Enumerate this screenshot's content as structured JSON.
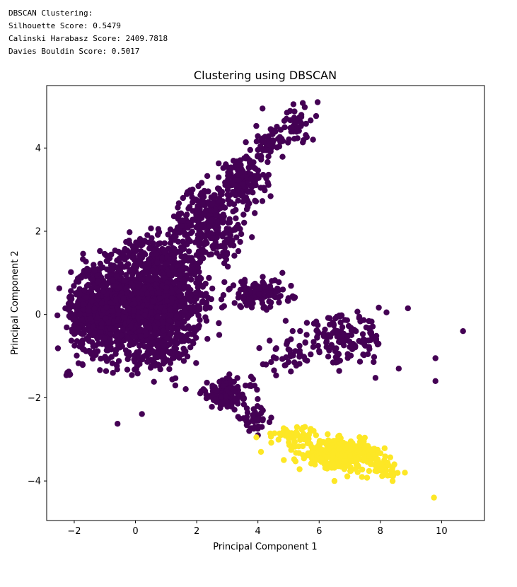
{
  "console": {
    "lines": [
      "DBSCAN Clustering:",
      "Silhouette Score: 0.5479",
      "Calinski Harabasz Score: 2409.7818",
      "Davies Bouldin Score: 0.5017"
    ]
  },
  "chart_data": {
    "type": "scatter",
    "title": "Clustering using DBSCAN",
    "xlabel": "Principal Component 1",
    "ylabel": "Principal Component 2",
    "xlim": [
      -2.9,
      11.4
    ],
    "ylim": [
      -4.95,
      5.5
    ],
    "xticks": [
      -2,
      0,
      2,
      4,
      6,
      8,
      10
    ],
    "yticks": [
      -4,
      -2,
      0,
      2,
      4
    ],
    "xtick_labels": [
      "−2",
      "0",
      "2",
      "4",
      "6",
      "8",
      "10"
    ],
    "ytick_labels": [
      "−4",
      "−2",
      "0",
      "2",
      "4"
    ],
    "grid": false,
    "legend": "none",
    "series": [
      {
        "color": "#440154",
        "regions": [
          {
            "cx": 0.6,
            "cy": 0.3,
            "rx": 1.7,
            "ry": 1.55,
            "n": 1400
          },
          {
            "cx": -1.2,
            "cy": 0.1,
            "rx": 1.0,
            "ry": 1.1,
            "n": 600
          },
          {
            "cx": 2.4,
            "cy": 2.2,
            "rx": 1.2,
            "ry": 0.9,
            "n": 300
          },
          {
            "cx": 3.5,
            "cy": 3.2,
            "rx": 0.8,
            "ry": 0.6,
            "n": 160
          },
          {
            "cx": 4.3,
            "cy": 4.1,
            "rx": 0.5,
            "ry": 0.4,
            "n": 60
          },
          {
            "cx": 5.3,
            "cy": 4.6,
            "rx": 0.6,
            "ry": 0.5,
            "n": 40
          },
          {
            "cx": 4.0,
            "cy": 0.5,
            "rx": 1.2,
            "ry": 0.35,
            "n": 120
          },
          {
            "cx": 3.0,
            "cy": -1.9,
            "rx": 0.9,
            "ry": 0.4,
            "n": 120
          },
          {
            "cx": 3.9,
            "cy": -2.5,
            "rx": 0.5,
            "ry": 0.25,
            "n": 40
          },
          {
            "cx": 6.8,
            "cy": -0.6,
            "rx": 1.4,
            "ry": 0.6,
            "n": 140
          },
          {
            "cx": 5.0,
            "cy": -1.0,
            "rx": 0.8,
            "ry": 0.45,
            "n": 40
          },
          {
            "cx": -2.2,
            "cy": -1.45,
            "rx": 0.1,
            "ry": 0.08,
            "n": 6
          }
        ],
        "points": [
          [
            5.95,
            5.1
          ],
          [
            4.95,
            4.85
          ],
          [
            4.15,
            4.95
          ],
          [
            9.8,
            -1.05
          ],
          [
            9.8,
            -1.6
          ],
          [
            10.7,
            -0.4
          ],
          [
            8.9,
            0.15
          ],
          [
            8.2,
            0.05
          ],
          [
            8.6,
            -1.3
          ],
          [
            4.85,
            -2.85
          ],
          [
            5.6,
            -0.2
          ],
          [
            3.2,
            0.7
          ],
          [
            4.8,
            1.0
          ],
          [
            4.0,
            -2.9
          ],
          [
            5.8,
            4.2
          ]
        ]
      },
      {
        "color": "#fde725",
        "regions": [
          {
            "cx": 6.8,
            "cy": -3.35,
            "rx": 1.3,
            "ry": 0.35,
            "n": 320
          },
          {
            "cx": 5.2,
            "cy": -2.9,
            "rx": 0.7,
            "ry": 0.25,
            "n": 50
          },
          {
            "cx": 8.1,
            "cy": -3.7,
            "rx": 0.5,
            "ry": 0.2,
            "n": 40
          }
        ],
        "points": [
          [
            9.75,
            -4.4
          ],
          [
            8.8,
            -3.8
          ],
          [
            4.1,
            -3.3
          ],
          [
            3.95,
            -2.95
          ],
          [
            6.5,
            -4.0
          ],
          [
            8.4,
            -4.0
          ],
          [
            5.9,
            -2.9
          ]
        ]
      }
    ]
  }
}
